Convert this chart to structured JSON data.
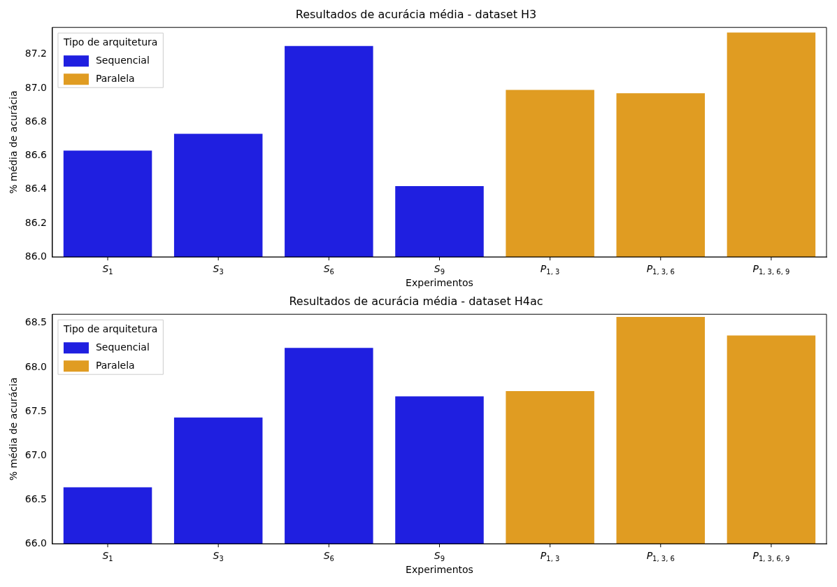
{
  "chart_data": [
    {
      "type": "bar",
      "title": "Resultados de acurácia média - dataset H3",
      "xlabel": "Experimentos",
      "ylabel": "% média de acurácia",
      "legend_title": "Tipo de arquitetura",
      "legend": "top left",
      "grid": false,
      "categories": [
        "S$_{1}$",
        "S$_{3}$",
        "S$_{6}$",
        "S$_{9}$",
        "P$_{1, 3}$",
        "P$_{1, 3, 6}$",
        "P$_{1, 3, 6, 9}$"
      ],
      "series": [
        {
          "name": "Sequencial",
          "color": "#1f1fe0",
          "values": [
            86.63,
            86.73,
            87.25,
            86.42,
            null,
            null,
            null
          ]
        },
        {
          "name": "Paralela",
          "color": "#e09c22",
          "values": [
            null,
            null,
            null,
            null,
            86.99,
            86.97,
            87.33
          ]
        }
      ],
      "ylim": [
        86.0,
        87.36
      ],
      "yticks": [
        {
          "value": 86.0,
          "label": "86.0"
        },
        86.2,
        86.4,
        86.6,
        86.8,
        {
          "value": 87.0,
          "label": "87.0"
        },
        87.2
      ]
    },
    {
      "type": "bar",
      "title": "Resultados de acurácia média - dataset H4ac",
      "xlabel": "Experimentos",
      "ylabel": "% média de acurácia",
      "legend_title": "Tipo de arquitetura",
      "legend": "top left",
      "grid": false,
      "categories": [
        "S$_{1}$",
        "S$_{3}$",
        "S$_{6}$",
        "S$_{9}$",
        "P$_{1, 3}$",
        "P$_{1, 3, 6}$",
        "P$_{1, 3, 6, 9}$"
      ],
      "series": [
        {
          "name": "Sequencial",
          "color": "#1f1fe0",
          "values": [
            66.64,
            67.43,
            68.22,
            67.67,
            null,
            null,
            null
          ]
        },
        {
          "name": "Paralela",
          "color": "#e09c22",
          "values": [
            null,
            null,
            null,
            null,
            67.73,
            68.57,
            68.36
          ]
        }
      ],
      "ylim": [
        66.0,
        68.6
      ],
      "yticks": [
        {
          "value": 66.0,
          "label": "66.0"
        },
        66.5,
        {
          "value": 67.0,
          "label": "67.0"
        },
        67.5,
        {
          "value": 68.0,
          "label": "68.0"
        },
        68.5
      ]
    }
  ]
}
